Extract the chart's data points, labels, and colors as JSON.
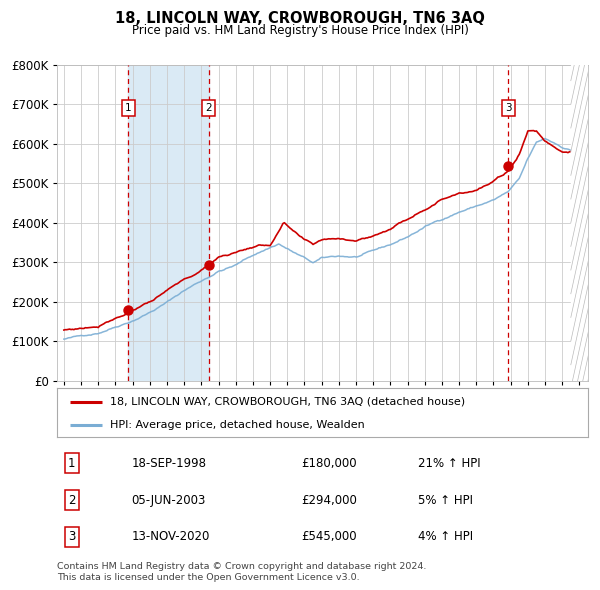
{
  "title": "18, LINCOLN WAY, CROWBOROUGH, TN6 3AQ",
  "subtitle": "Price paid vs. HM Land Registry's House Price Index (HPI)",
  "legend_line1": "18, LINCOLN WAY, CROWBOROUGH, TN6 3AQ (detached house)",
  "legend_line2": "HPI: Average price, detached house, Wealden",
  "transactions": [
    {
      "num": 1,
      "date": "18-SEP-1998",
      "price": 180000,
      "pct": "21%",
      "dir": "↑",
      "x_year": 1998.75
    },
    {
      "num": 2,
      "date": "05-JUN-2003",
      "price": 294000,
      "pct": "5%",
      "dir": "↑",
      "x_year": 2003.42
    },
    {
      "num": 3,
      "date": "13-NOV-2020",
      "price": 545000,
      "pct": "4%",
      "dir": "↑",
      "x_year": 2020.87
    }
  ],
  "footnote1": "Contains HM Land Registry data © Crown copyright and database right 2024.",
  "footnote2": "This data is licensed under the Open Government Licence v3.0.",
  "hpi_color": "#7aadd4",
  "price_color": "#cc0000",
  "shade_color": "#daeaf5",
  "grid_color": "#cccccc",
  "dot_color": "#cc0000",
  "dashed_color": "#cc0000",
  "ylim": [
    0,
    800000
  ],
  "xlim_start": 1994.6,
  "xlim_end": 2025.5
}
